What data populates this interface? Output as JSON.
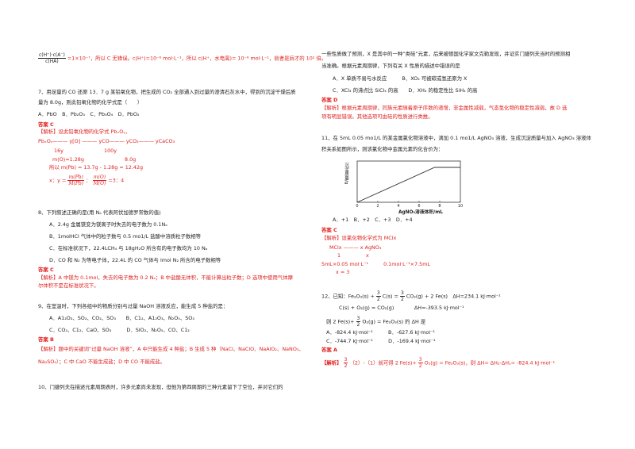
{
  "left": {
    "l01_frac_num": "c(H⁺)·c(A⁻)",
    "l01_frac_den": "c(HA)",
    "l01_tail": "=1×10⁻⁷，所以 C 无错误。c(H⁺)=10⁻⁶ mol·L⁻¹，所以 c(H⁺，水电离)= 10⁻⁸ mol·L⁻¹，前者是后才的 10² 倍。",
    "q7": "7、用足量的 CO 还原 13．7 g 某铅氧化物，把生成的 CO₂ 全部通入到过量的澄清石灰水中，得到的沉淀干燥后质",
    "q7b": "量为 8.0g，则此铅氧化物的化学式是（　　）",
    "q7opts": "A．PbO　B．Pb₂O₃　C．Pb₃O₄　D．PbO₂",
    "q7ans": "答案 C",
    "q7e1": "【解析】设此铅氧化物的化学式 PbₓOᵧ，",
    "q7e2": "PbₓOᵧ——— y[O] ——— yCO——— yCO₂——— yCaCO₃",
    "q7e3": "16y　　　　　　　　100y",
    "q7e4": "m(O)=1.28g　　　　　　　　8.0g",
    "q7e5": "所以 m(Pb) = 13.7g - 1.28g = 12.42g",
    "q7e6a": "x：y =",
    "q7e6_n1": "m(Pb)",
    "q7e6_d1": "M(Pb)",
    "q7e6_n2": "m(O)",
    "q7e6_d2": "M(O)",
    "q7e6b": "=3：4",
    "q8": "8、下列叙述正确的是(用 Nₐ 代表阿伏加德罗常数的值)",
    "q8a": "A．2.4g 金属镁变为镁离子时失去的电子数为 0.1Nₐ",
    "q8b": "B．1molHCl 气体中的粒子数与 0.5 mo1/L 盐酸中溶质粒子数相等",
    "q8c": "C．在标准状况下，22.4LCH₄ 与 18gH₂O 所含有的电子数均为 10 Nₐ",
    "q8d": "D．CO 和 N₂ 为等电子体，22.4L 的 CO 气体与 lmol N₂ 所含的电子数相等",
    "q8ans": "答案 C",
    "q8e1": "【解析】A 中镁为 0.1mol，失去的电子数为 0.2 Nₐ；B 中盐酸无体积，不能计算出粒子数；D 选项中使用气体摩",
    "q8e2": "尔体积不是在标准状况下。",
    "q9": "9、在室温时，下列各组中的物质分别与过量 NaOH 溶液反应，能生成 5 种盐的是：",
    "q9a": "A．A1₂O₃、SO₂、CO₂、SO₃　　B．C1₂、A1₂O₃、N₂O₅、SO₃",
    "q9b": "C．CO₂、C1₂、CaO、SO₃　　　D．SiO₂、N₂O₅、CO、C1₂",
    "q9ans": "答案 B",
    "q9e1": "【解析】题中的关键词“过量 NaOH 溶液”，A 中只能生成 4 种盐；B 生成 5 种（NaCl、NaClO、NaAlO₂、NaNO₃、",
    "q9e2": "Na₂SO₄）；C 中 CaO 不能生成盐；D 中 CO 不能成盐。",
    "q10": "10、门捷列夫在描述元素周期表时，许多元素尚未发现，但他为第四周期的三种元素留下了空位，并对它们的"
  },
  "right": {
    "r01": "一些性质做了预测，X 是其中的一种“类硅”元素，后来被德国化学家文克勒发现，并证实门捷列夫当时的预测相",
    "r02": "当准确。根据元素周期律，下列有关 X 性质的描述中错误的是",
    "r03": "A．X 单质不易与水反应　　　B．XO₂ 可被碳或氢还原为 X",
    "r04": "C．XCl₄ 的沸点比 SiCl₄ 的高　　D．XH₄ 的稳定性比 SiH₄ 的高",
    "r05": "答案 D",
    "r06": "【解析】根据元素周期律，同族元素随着原子序数的递增，非金属性减弱，气态氢化物的稳定性减弱，故 D 选",
    "r07": "项有明显错误。其他选项可由硅的性质进行类推。",
    "r08": "11、在 5mL 0.05 mo1/L 的某金属氯化物溶液中，滴加 0.1 mo1/L AgNO₃ 溶液，生成沉淀质量与加入 AgNO₃ 溶液体",
    "r09": "积关系如图所示，则该氯化物中金属元素的化合价为：",
    "r10": "A．+1　B．+2　C．+3　D．+4",
    "r11": "答案 C",
    "r12": "【解析】设氯化物化学式为 MClx",
    "r13": "MClx ——— x AgNO₃",
    "r14": "1　　　　　x",
    "r15": "5mL×0.05 mol·L⁻¹　　　0.1mol·L⁻¹×7.5mL",
    "r16": "x = 3",
    "r17a": "12、已知：Fe₂O₃(s) +",
    "r17n1": "3",
    "r17d1": "2",
    "r17b": "C(s) =",
    "r17n2": "3",
    "r17d2": "2",
    "r17c": "CO₂(g) + 2 Fe(s)　ΔH=234.1 kJ·mol⁻¹",
    "r18": "C(s) + O₂(g) = CO₂(g)　　　　ΔH=-393.5 kJ·mol⁻¹",
    "r19a": "则 2 Fe(s)+",
    "r19n": "3",
    "r19d": "2",
    "r19b": "O₂(g) = Fe₂O₃(s) 的 ΔH 是",
    "r20": "A．-824.4 kJ·mol⁻¹　　　B．-627.6 kJ·mol⁻¹",
    "r21": "C．-744.7 kJ·mol⁻¹　　　D．-169.4 kJ·mol⁻¹",
    "r22": "答案 A",
    "r23a": "【解析】",
    "r23n1": "3",
    "r23d1": "2",
    "r23b": "（2）-（1）就可得 2 Fe(s)+",
    "r23n2": "3",
    "r23d2": "2",
    "r23c": "O₂(g) = Fe₂O₃(s)，则 ΔH= ΔH₂-ΔH₁= -824.4 kJ·mol⁻¹"
  },
  "chart_data": {
    "type": "line",
    "title": "",
    "ylabel": "沉淀质量/g",
    "xlabel": "AgNO₃溶液体积/mL",
    "x_ticks": [
      "0",
      "2",
      "4",
      "6",
      "8",
      "10"
    ],
    "xlim": [
      0,
      10
    ],
    "ylim": [
      0,
      1
    ],
    "series": [
      {
        "x": [
          0,
          7.5,
          10
        ],
        "y": [
          0,
          1,
          1
        ]
      }
    ]
  }
}
